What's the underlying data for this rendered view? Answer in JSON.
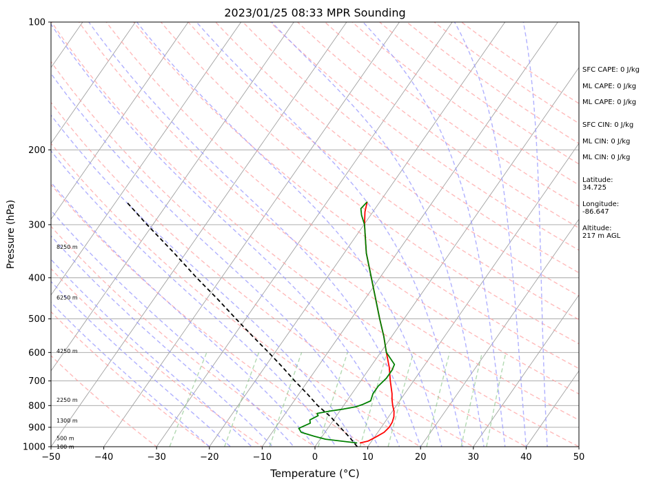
{
  "chart_data": {
    "type": "line",
    "title": "2023/01/25 08:33 MPR Sounding",
    "xlabel": "Temperature (°C)",
    "ylabel": "Pressure (hPa)",
    "xlim": [
      -50,
      50
    ],
    "ylim": [
      1000,
      100
    ],
    "y_scale": "log",
    "skew_t": true,
    "grid": true,
    "x_ticks": [
      -50,
      -40,
      -30,
      -20,
      -10,
      0,
      10,
      20,
      30,
      40,
      50
    ],
    "y_ticks": [
      100,
      200,
      300,
      400,
      500,
      600,
      700,
      800,
      900,
      1000
    ],
    "background_lines": {
      "isotherm_color": "#a0a0a0",
      "dry_adiabat_color": "#ff9c9c",
      "moist_adiabat_color": "#9c9cff",
      "mixing_ratio_color": "#7fbf7f"
    },
    "series": [
      {
        "key": "temperature",
        "color": "#ff0000",
        "points": [
          {
            "p": 980,
            "t": 8.0
          },
          {
            "p": 970,
            "t": 9.3
          },
          {
            "p": 950,
            "t": 10.2
          },
          {
            "p": 925,
            "t": 11.2
          },
          {
            "p": 900,
            "t": 11.5
          },
          {
            "p": 875,
            "t": 11.4
          },
          {
            "p": 850,
            "t": 11.0
          },
          {
            "p": 825,
            "t": 10.3
          },
          {
            "p": 800,
            "t": 9.3
          },
          {
            "p": 775,
            "t": 8.4
          },
          {
            "p": 750,
            "t": 7.6
          },
          {
            "p": 700,
            "t": 5.6
          },
          {
            "p": 650,
            "t": 3.6
          },
          {
            "p": 600,
            "t": 1.1
          },
          {
            "p": 550,
            "t": -1.5
          },
          {
            "p": 500,
            "t": -4.6
          },
          {
            "p": 450,
            "t": -7.9
          },
          {
            "p": 400,
            "t": -11.6
          },
          {
            "p": 350,
            "t": -15.8
          },
          {
            "p": 300,
            "t": -19.9
          },
          {
            "p": 280,
            "t": -21.5
          },
          {
            "p": 265,
            "t": -22.4
          }
        ]
      },
      {
        "key": "dewpoint",
        "color": "#008000",
        "points": [
          {
            "p": 980,
            "t": 7.5
          },
          {
            "p": 960,
            "t": 1.0
          },
          {
            "p": 945,
            "t": -1.5
          },
          {
            "p": 925,
            "t": -4.5
          },
          {
            "p": 905,
            "t": -5.5
          },
          {
            "p": 880,
            "t": -4.0
          },
          {
            "p": 865,
            "t": -4.5
          },
          {
            "p": 845,
            "t": -3.5
          },
          {
            "p": 835,
            "t": -4.0
          },
          {
            "p": 825,
            "t": -2.0
          },
          {
            "p": 815,
            "t": 0.5
          },
          {
            "p": 805,
            "t": 2.5
          },
          {
            "p": 795,
            "t": 3.5
          },
          {
            "p": 780,
            "t": 4.5
          },
          {
            "p": 750,
            "t": 4.0
          },
          {
            "p": 720,
            "t": 4.0
          },
          {
            "p": 690,
            "t": 4.5
          },
          {
            "p": 660,
            "t": 4.5
          },
          {
            "p": 640,
            "t": 4.2
          },
          {
            "p": 600,
            "t": 1.1
          },
          {
            "p": 550,
            "t": -1.5
          },
          {
            "p": 500,
            "t": -4.6
          },
          {
            "p": 450,
            "t": -7.9
          },
          {
            "p": 400,
            "t": -11.6
          },
          {
            "p": 350,
            "t": -15.8
          },
          {
            "p": 300,
            "t": -19.9
          },
          {
            "p": 285,
            "t": -21.7
          },
          {
            "p": 275,
            "t": -22.7
          },
          {
            "p": 265,
            "t": -22.4
          }
        ]
      },
      {
        "key": "parcel",
        "color": "#000000",
        "dashed": true,
        "points": [
          {
            "p": 1000,
            "t": 8.0
          },
          {
            "p": 950,
            "t": 5.3
          },
          {
            "p": 900,
            "t": 2.2
          },
          {
            "p": 850,
            "t": -1.0
          },
          {
            "p": 800,
            "t": -4.9
          },
          {
            "p": 750,
            "t": -8.5
          },
          {
            "p": 700,
            "t": -12.5
          },
          {
            "p": 650,
            "t": -16.6
          },
          {
            "p": 600,
            "t": -21.2
          },
          {
            "p": 550,
            "t": -26.3
          },
          {
            "p": 500,
            "t": -31.8
          },
          {
            "p": 450,
            "t": -37.8
          },
          {
            "p": 400,
            "t": -44.7
          },
          {
            "p": 350,
            "t": -52.2
          },
          {
            "p": 300,
            "t": -61.1
          },
          {
            "p": 265,
            "t": -68.0
          }
        ]
      }
    ],
    "altitude_labels": [
      {
        "p": 1000,
        "text": "100 m"
      },
      {
        "p": 955,
        "text": "500 m"
      },
      {
        "p": 868,
        "text": "1300 m"
      },
      {
        "p": 775,
        "text": "2250 m"
      },
      {
        "p": 595,
        "text": "4250 m"
      },
      {
        "p": 445,
        "text": "6250 m"
      },
      {
        "p": 338,
        "text": "8250 m"
      }
    ]
  },
  "stats": {
    "sfc_cape": "SFC CAPE: 0 J/kg",
    "ml_cape_1": "ML CAPE: 0 J/kg",
    "ml_cape_2": "ML CAPE: 0 J/kg",
    "sfc_cin": "SFC CIN: 0 J/kg",
    "ml_cin_1": "ML CIN: 0 J/kg",
    "ml_cin_2": "ML CIN: 0 J/kg",
    "latitude_label": "Latitude:",
    "latitude_value": "34.725",
    "longitude_label": "Longitude:",
    "longitude_value": "-86.647",
    "altitude_label": "Altitude:",
    "altitude_value": "217 m AGL"
  }
}
